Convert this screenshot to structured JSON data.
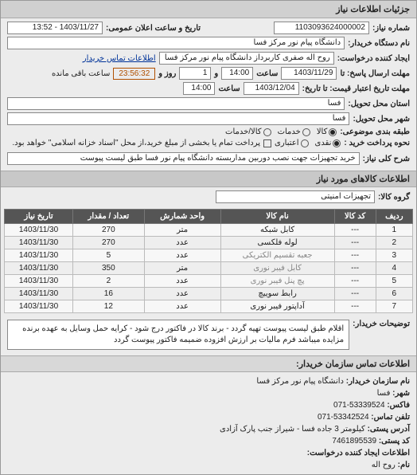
{
  "header": {
    "title": "جزئیات اطلاعات نیاز"
  },
  "fields": {
    "number_label": "شماره نیاز:",
    "number_value": "1103093624000002",
    "announce_label": "تاریخ و ساعت اعلان عمومی:",
    "announce_value": "1403/11/27 - 13:52",
    "buyer_label": "نام دستگاه خریدار:",
    "buyer_value": "دانشگاه پیام نور مرکز فسا",
    "requester_label": "ایجاد کننده درخواست:",
    "requester_value": "روح اله  صفری کاربرداز دانشگاه پیام نور مرکز فسا",
    "contact_link": "اطلاعات تماس خریدار",
    "deadline_reply_label": "مهلت ارسال پاسخ: تا",
    "deadline_reply_date": "1403/11/29",
    "time_label": "ساعت",
    "deadline_reply_time": "14:00",
    "days_label": "و",
    "days_value": "1",
    "days_after": "روز و",
    "timer": "23:56:32",
    "remaining": "ساعت باقی مانده",
    "validity_label": "مهلت تاریخ اعتبار قیمت: تا تاریخ:",
    "validity_date": "1403/12/04",
    "validity_time": "14:00",
    "province_label": "استان محل تحویل:",
    "province_value": "فسا",
    "city_label": "شهر محل تحویل:",
    "city_value": "فسا",
    "budget_label": "طبقه بندی موضوعی:",
    "budget_opts": {
      "kala": "کالا",
      "khadamat": "خدمات",
      "kalakhadamat": "کالا/خدمات"
    },
    "pay_label": "نحوه پرداخت خرید :",
    "pay_opts": {
      "cash": "نقدی",
      "credit": "اعتباری"
    },
    "pay_note": "پرداخت تمام یا بخشی از مبلغ خرید،از محل \"اسناد خزانه اسلامی\" خواهد بود.",
    "summary_label": "شرح کلی نیاز:",
    "summary_value": "خرید تجهیزات جهت نصب دوربین مداربسته دانشگاه پیام نور فسا  طبق لیست پیوست"
  },
  "goods": {
    "title": "اطلاعات کالاهای مورد نیاز",
    "group_label": "گروه کالا:",
    "group_value": "تجهیزات امنیتی"
  },
  "table": {
    "headers": [
      "ردیف",
      "کد کالا",
      "نام کالا",
      "واحد شمارش",
      "تعداد / مقدار",
      "تاریخ نیاز"
    ],
    "rows": [
      [
        "1",
        "---",
        "کابل شبکه",
        "متر",
        "270",
        "1403/11/30"
      ],
      [
        "2",
        "---",
        "لوله فلکسی",
        "عدد",
        "270",
        "1403/11/30"
      ],
      [
        "3",
        "---",
        "جعبه تقسیم الکتریکی",
        "عدد",
        "5",
        "1403/11/30"
      ],
      [
        "4",
        "---",
        "کابل فیبر نوری",
        "متر",
        "350",
        "1403/11/30"
      ],
      [
        "5",
        "---",
        "پچ پنل فیبر نوری",
        "عدد",
        "2",
        "1403/11/30"
      ],
      [
        "6",
        "---",
        "رابط سوییچ",
        "عدد",
        "16",
        "1403/11/30"
      ],
      [
        "7",
        "---",
        "آداپتور فیبر نوری",
        "عدد",
        "12",
        "1403/11/30"
      ]
    ]
  },
  "notes": {
    "label": "توضیحات خریدار:",
    "text": "اقلام طبق لیست پیوست تهیه گردد - برند کالا در فاکتور درج شود - کرایه حمل وسایل به عهده برنده مزایده میباشد فرم مالیات بر ارزش افزوده ضمیمه فاکتور پیوست گردد"
  },
  "contact": {
    "title": "اطلاعات تماس سازمان خریدار:",
    "org_label": "نام سازمان خریدار:",
    "org_value": "دانشگاه پیام نور مرکز فسا",
    "city_label": "شهر:",
    "city_value": "فسا",
    "fax_label": "فاکس:",
    "fax_value": "53339524-071",
    "phone_label": "تلفن تماس:",
    "phone_value": "53342524-071",
    "address_label": "آدرس پستی:",
    "address_value": "کیلومتر 3 جاده فسا - شیراز جنب پارک آزادی",
    "post_label": "کد پستی:",
    "post_value": "7461895539",
    "creator_label": "اطلاعات ایجاد کننده درخواست:",
    "name_label": "نام:",
    "name_value": "روح اله"
  },
  "watermark": "سامانه تدارکات الکترونیکی دولت - ۸۸۳۴۹۶"
}
